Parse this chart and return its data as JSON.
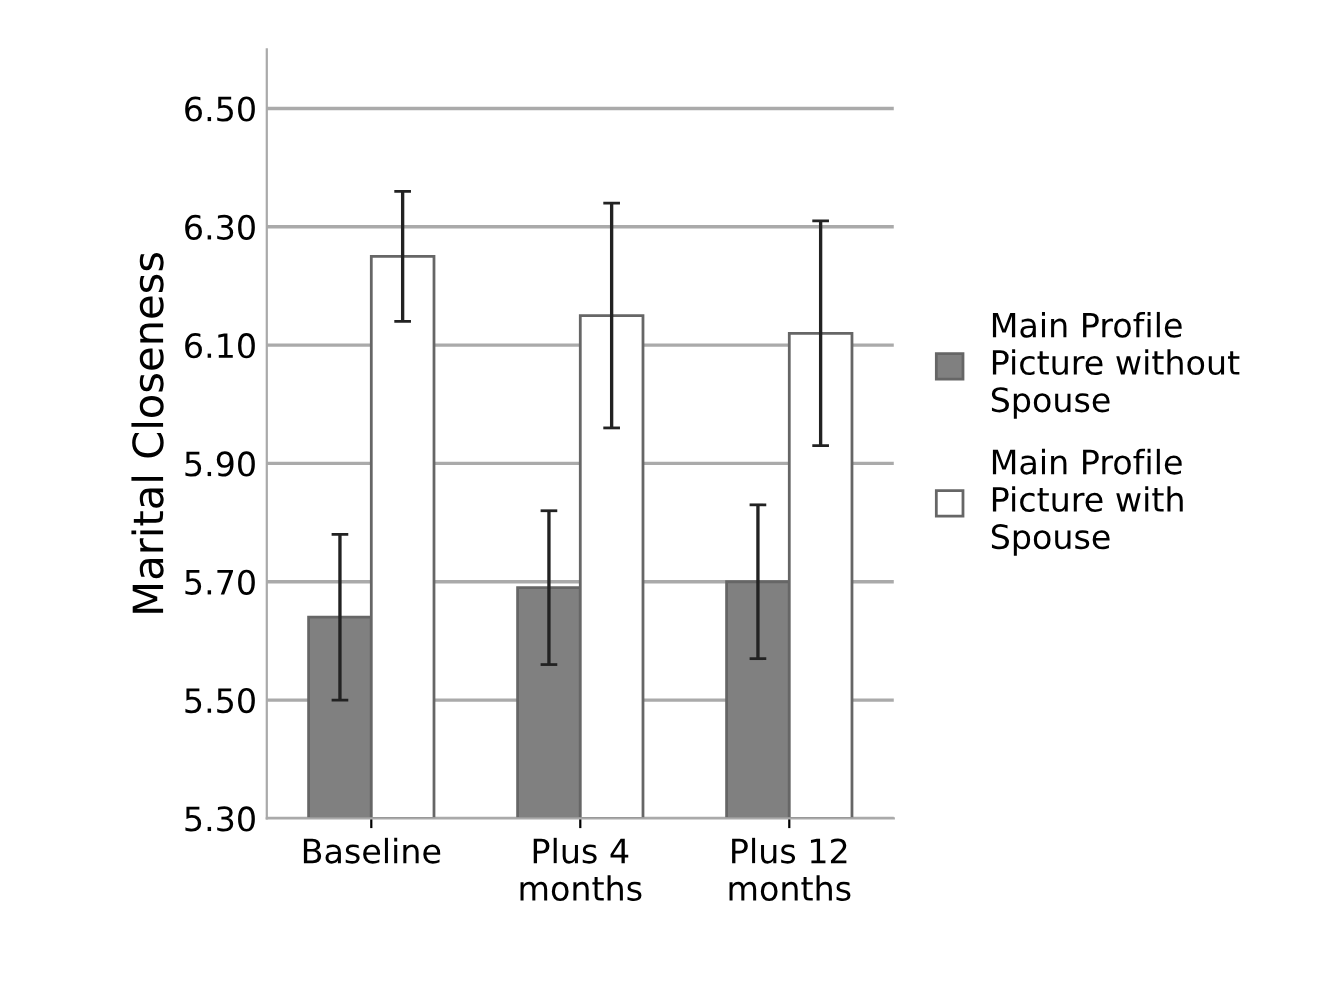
{
  "chart_data": {
    "type": "bar",
    "ylabel": "Marital Closeness",
    "categories": [
      "Baseline",
      "Plus 4\nmonths",
      "Plus 12\nmonths"
    ],
    "series": [
      {
        "name": "Main Profile\nPicture without\nSpouse",
        "color": "#808080",
        "values": [
          5.64,
          5.69,
          5.7
        ],
        "errors": [
          0.14,
          0.13,
          0.13
        ]
      },
      {
        "name": "Main Profile\nPicture with\nSpouse",
        "color": "#ffffff",
        "values": [
          6.25,
          6.15,
          6.12
        ],
        "errors": [
          0.11,
          0.19,
          0.19
        ]
      }
    ],
    "ylim": [
      5.3,
      6.6
    ],
    "yticks": [
      {
        "value": 5.3,
        "label": "5.30"
      },
      {
        "value": 5.5,
        "label": "5.50"
      },
      {
        "value": 5.7,
        "label": "5.70"
      },
      {
        "value": 5.9,
        "label": "5.90"
      },
      {
        "value": 6.1,
        "label": "6.10"
      },
      {
        "value": 6.3,
        "label": "6.30"
      },
      {
        "value": 6.5,
        "label": "6.50"
      }
    ],
    "grid": "y",
    "legend": "right"
  }
}
